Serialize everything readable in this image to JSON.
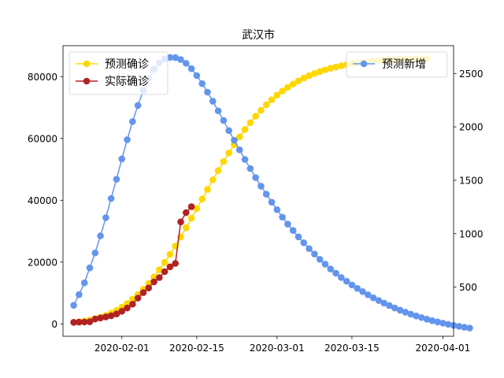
{
  "chart_data": {
    "type": "line",
    "title": "武汉市",
    "xlabel": "",
    "ylabel_left": "",
    "ylabel_right": "",
    "x_axis": {
      "type": "date",
      "range": [
        "2020-01-21",
        "2020-04-03"
      ],
      "tick_dates": [
        "2020-02-01",
        "2020-02-15",
        "2020-03-01",
        "2020-03-15",
        "2020-04-01"
      ],
      "tick_labels": [
        "2020-02-01",
        "2020-02-15",
        "2020-03-01",
        "2020-03-15",
        "2020-04-01"
      ]
    },
    "y_left": {
      "range": [
        -4000,
        90000
      ],
      "ticks": [
        0,
        20000,
        40000,
        60000,
        80000
      ],
      "tick_labels": [
        "0",
        "20000",
        "40000",
        "60000",
        "80000"
      ]
    },
    "y_right": {
      "range": [
        40,
        2760
      ],
      "ticks": [
        500,
        1000,
        1500,
        2000,
        2500
      ],
      "tick_labels": [
        "500",
        "1000",
        "1500",
        "2000",
        "2500"
      ]
    },
    "grid": false,
    "series": [
      {
        "name": "预测确诊",
        "axis": "left",
        "color": "#FFD700",
        "start_date": "2020-01-23",
        "values": [
          500,
          700,
          900,
          1250,
          1650,
          2150,
          2750,
          3500,
          4350,
          5400,
          6600,
          8000,
          9500,
          11200,
          13100,
          15200,
          17500,
          19900,
          22500,
          25200,
          28100,
          31100,
          34200,
          37300,
          40400,
          43500,
          46600,
          49600,
          52500,
          55300,
          58000,
          60500,
          62900,
          65100,
          67200,
          69100,
          70900,
          72500,
          74000,
          75300,
          76500,
          77600,
          78600,
          79500,
          80300,
          81000,
          81650,
          82200,
          82700,
          83100,
          83500,
          83850,
          84150,
          84400,
          84650,
          84850,
          85000,
          85150,
          85300,
          85400,
          85500,
          85600,
          85650,
          85700,
          85750,
          85800,
          85850
        ]
      },
      {
        "name": "实际确诊",
        "axis": "left",
        "color": "#B22222",
        "start_date": "2020-01-23",
        "values": [
          495,
          572,
          618,
          698,
          1590,
          1905,
          2261,
          2639,
          3215,
          4109,
          5142,
          6384,
          8351,
          10117,
          11618,
          13603,
          14982,
          16902,
          18454,
          19558,
          32994,
          35991,
          37914
        ]
      },
      {
        "name": "预测新增",
        "axis": "right",
        "color": "#6495ED",
        "start_date": "2020-01-23",
        "values": [
          330,
          430,
          540,
          680,
          820,
          980,
          1150,
          1330,
          1510,
          1700,
          1880,
          2050,
          2200,
          2340,
          2450,
          2540,
          2600,
          2635,
          2650,
          2648,
          2630,
          2595,
          2545,
          2480,
          2405,
          2325,
          2240,
          2150,
          2060,
          1965,
          1875,
          1785,
          1695,
          1610,
          1525,
          1445,
          1370,
          1295,
          1225,
          1155,
          1090,
          1030,
          970,
          915,
          860,
          810,
          760,
          715,
          670,
          630,
          590,
          555,
          520,
          488,
          458,
          428,
          400,
          375,
          350,
          327,
          305,
          284,
          265,
          247,
          230,
          215,
          200,
          186,
          174,
          163,
          152,
          142,
          133,
          124,
          117
        ]
      }
    ],
    "legends": [
      {
        "placement": "upper-left",
        "entries": [
          "预测确诊",
          "实际确诊"
        ]
      },
      {
        "placement": "upper-right",
        "entries": [
          "预测新增"
        ]
      }
    ]
  }
}
